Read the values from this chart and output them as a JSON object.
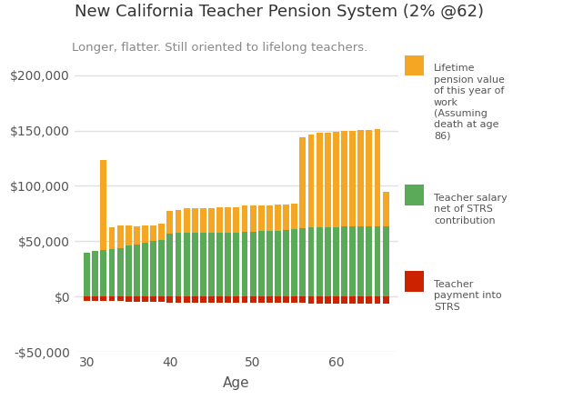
{
  "title": "New California Teacher Pension System (2% @62)",
  "subtitle": "Longer, flatter. Still oriented to lifelong teachers.",
  "xlabel": "Age",
  "background_color": "#ffffff",
  "plot_bg_color": "#ffffff",
  "grid_color": "#e0e0e0",
  "ages": [
    30,
    31,
    32,
    33,
    34,
    35,
    36,
    37,
    38,
    39,
    40,
    41,
    42,
    43,
    44,
    45,
    46,
    47,
    48,
    49,
    50,
    51,
    52,
    53,
    54,
    55,
    56,
    57,
    58,
    59,
    60,
    61,
    62,
    63,
    64,
    65,
    66
  ],
  "salary_net": [
    40000,
    41000,
    42000,
    43000,
    44000,
    46000,
    47000,
    49000,
    50000,
    51000,
    57000,
    57500,
    57500,
    57500,
    57500,
    57500,
    58000,
    58000,
    58000,
    58500,
    58500,
    59000,
    59000,
    59500,
    60000,
    61000,
    62000,
    62500,
    63000,
    63000,
    63000,
    63500,
    63500,
    63500,
    63500,
    63500,
    63500
  ],
  "pension_extra": [
    0,
    0,
    81000,
    20000,
    20000,
    18000,
    16500,
    15500,
    14500,
    14500,
    20000,
    21000,
    22000,
    22000,
    22000,
    22000,
    22500,
    23000,
    23000,
    23500,
    24000,
    23500,
    23500,
    23500,
    23500,
    23000,
    82000,
    84000,
    85000,
    85000,
    86000,
    86000,
    86000,
    87000,
    87000,
    88000,
    31000
  ],
  "strs_payment": [
    -3800,
    -3900,
    -4000,
    -4100,
    -4200,
    -4370,
    -4465,
    -4655,
    -4750,
    -4845,
    -5415,
    -5465,
    -5465,
    -5465,
    -5465,
    -5465,
    -5510,
    -5510,
    -5510,
    -5560,
    -5560,
    -5605,
    -5605,
    -5655,
    -5700,
    -5795,
    -5890,
    -5940,
    -5985,
    -5985,
    -5985,
    -6033,
    -6033,
    -6033,
    -6033,
    -6033,
    -6033
  ],
  "ylim": [
    -50000,
    210000
  ],
  "yticks": [
    -50000,
    0,
    50000,
    100000,
    150000,
    200000
  ],
  "color_orange": "#f5a623",
  "color_green": "#5aaa5a",
  "color_red": "#cc2200",
  "legend_label_orange": "Lifetime\npension value\nof this year of\nwork\n(Assuming\ndeath at age\n86)",
  "legend_label_green": "Teacher salary\nnet of STRS\ncontribution",
  "legend_label_red": "Teacher\npayment into\nSTRS",
  "bar_width": 0.75
}
